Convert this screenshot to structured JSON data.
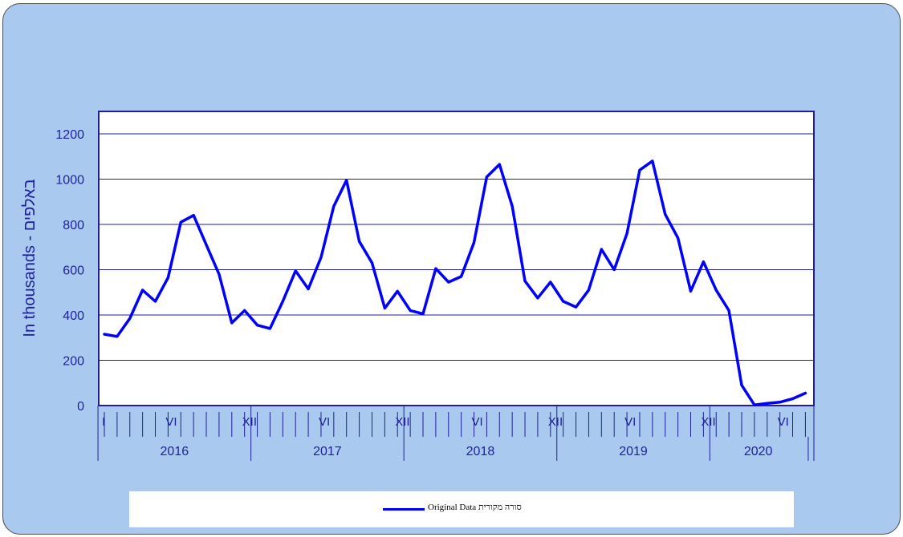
{
  "chart_data": {
    "type": "line",
    "ylabel": "In thousands - באלפים",
    "ylim": [
      0,
      1200
    ],
    "yticks": [
      "0",
      "200",
      "400",
      "600",
      "800",
      "1000",
      "1200"
    ],
    "grid": true,
    "legend_position": "bottom",
    "colors": {
      "series": "#0000ff",
      "background": "#a9caee",
      "plot": "#ffffff",
      "axis": "#1f1f9a"
    },
    "month_markers": [
      {
        "year_index": 0,
        "month": 1,
        "label": "I"
      },
      {
        "year_index": 0,
        "month": 6,
        "label": "VI"
      },
      {
        "year_index": 0,
        "month": 12,
        "label": "XII"
      },
      {
        "year_index": 1,
        "month": 6,
        "label": "VI"
      },
      {
        "year_index": 1,
        "month": 12,
        "label": "XII"
      },
      {
        "year_index": 2,
        "month": 6,
        "label": "VI"
      },
      {
        "year_index": 2,
        "month": 12,
        "label": "XII"
      },
      {
        "year_index": 3,
        "month": 6,
        "label": "VI"
      },
      {
        "year_index": 3,
        "month": 12,
        "label": "XII"
      },
      {
        "year_index": 4,
        "month": 6,
        "label": "VI"
      }
    ],
    "years": [
      "2016",
      "2017",
      "2018",
      "2019",
      "2020"
    ],
    "x": [
      "2016-01",
      "2016-02",
      "2016-03",
      "2016-04",
      "2016-05",
      "2016-06",
      "2016-07",
      "2016-08",
      "2016-09",
      "2016-10",
      "2016-11",
      "2016-12",
      "2017-01",
      "2017-02",
      "2017-03",
      "2017-04",
      "2017-05",
      "2017-06",
      "2017-07",
      "2017-08",
      "2017-09",
      "2017-10",
      "2017-11",
      "2017-12",
      "2018-01",
      "2018-02",
      "2018-03",
      "2018-04",
      "2018-05",
      "2018-06",
      "2018-07",
      "2018-08",
      "2018-09",
      "2018-10",
      "2018-11",
      "2018-12",
      "2019-01",
      "2019-02",
      "2019-03",
      "2019-04",
      "2019-05",
      "2019-06",
      "2019-07",
      "2019-08",
      "2019-09",
      "2019-10",
      "2019-11",
      "2019-12",
      "2020-01",
      "2020-02",
      "2020-03",
      "2020-04",
      "2020-05",
      "2020-06",
      "2020-07",
      "2020-08"
    ],
    "series": [
      {
        "name": "Original Data סורה מקורית",
        "values": [
          315,
          305,
          385,
          510,
          460,
          565,
          810,
          840,
          710,
          580,
          365,
          420,
          355,
          340,
          460,
          595,
          515,
          655,
          880,
          995,
          725,
          630,
          430,
          505,
          420,
          405,
          605,
          545,
          570,
          720,
          1010,
          1065,
          880,
          550,
          475,
          545,
          460,
          435,
          510,
          690,
          600,
          760,
          1040,
          1080,
          845,
          740,
          505,
          635,
          510,
          420,
          90,
          3,
          10,
          15,
          30,
          55
        ]
      }
    ]
  }
}
